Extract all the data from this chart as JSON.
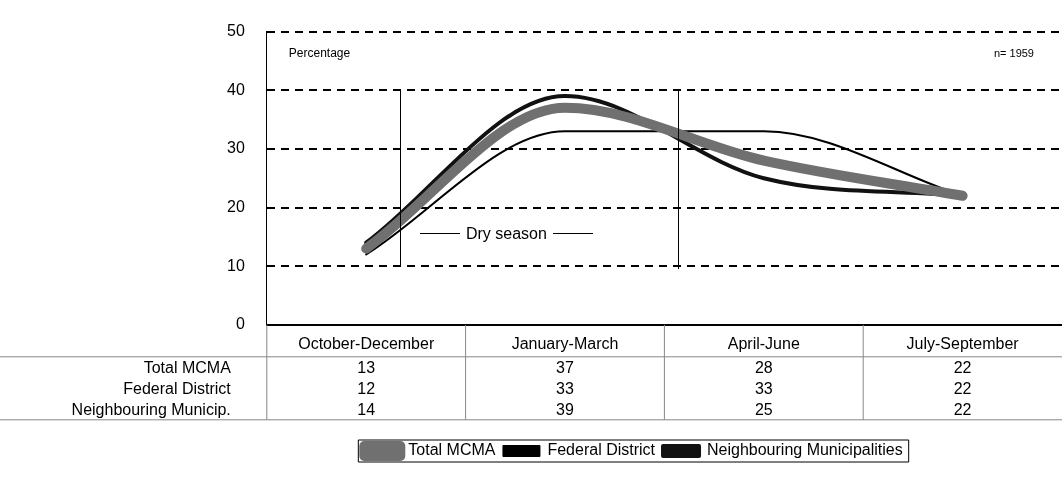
{
  "chart_data": {
    "type": "line",
    "ylabel": "Percentage",
    "categories": [
      "October-December",
      "January-March",
      "April-June",
      "July-September"
    ],
    "series": [
      {
        "name": "Total MCMA",
        "color": "#707070",
        "values": [
          13,
          37,
          28,
          22
        ]
      },
      {
        "name": "Federal District",
        "color": "#000000",
        "values": [
          12,
          33,
          33,
          22
        ]
      },
      {
        "name": "Neighbouring Municipalities",
        "color": "#111111",
        "values": [
          14,
          39,
          25,
          22
        ]
      }
    ],
    "ylim": [
      0,
      50
    ],
    "yticks": [
      0,
      10,
      20,
      30,
      40,
      50
    ],
    "grid": "y",
    "legend": "bottom",
    "marker": "none",
    "line_style": "solid",
    "data_labels": true,
    "annotations": [
      "n= 1959",
      "Dry season",
      "Total MCMA",
      "Federal District",
      "Neighbouring Municip."
    ]
  }
}
